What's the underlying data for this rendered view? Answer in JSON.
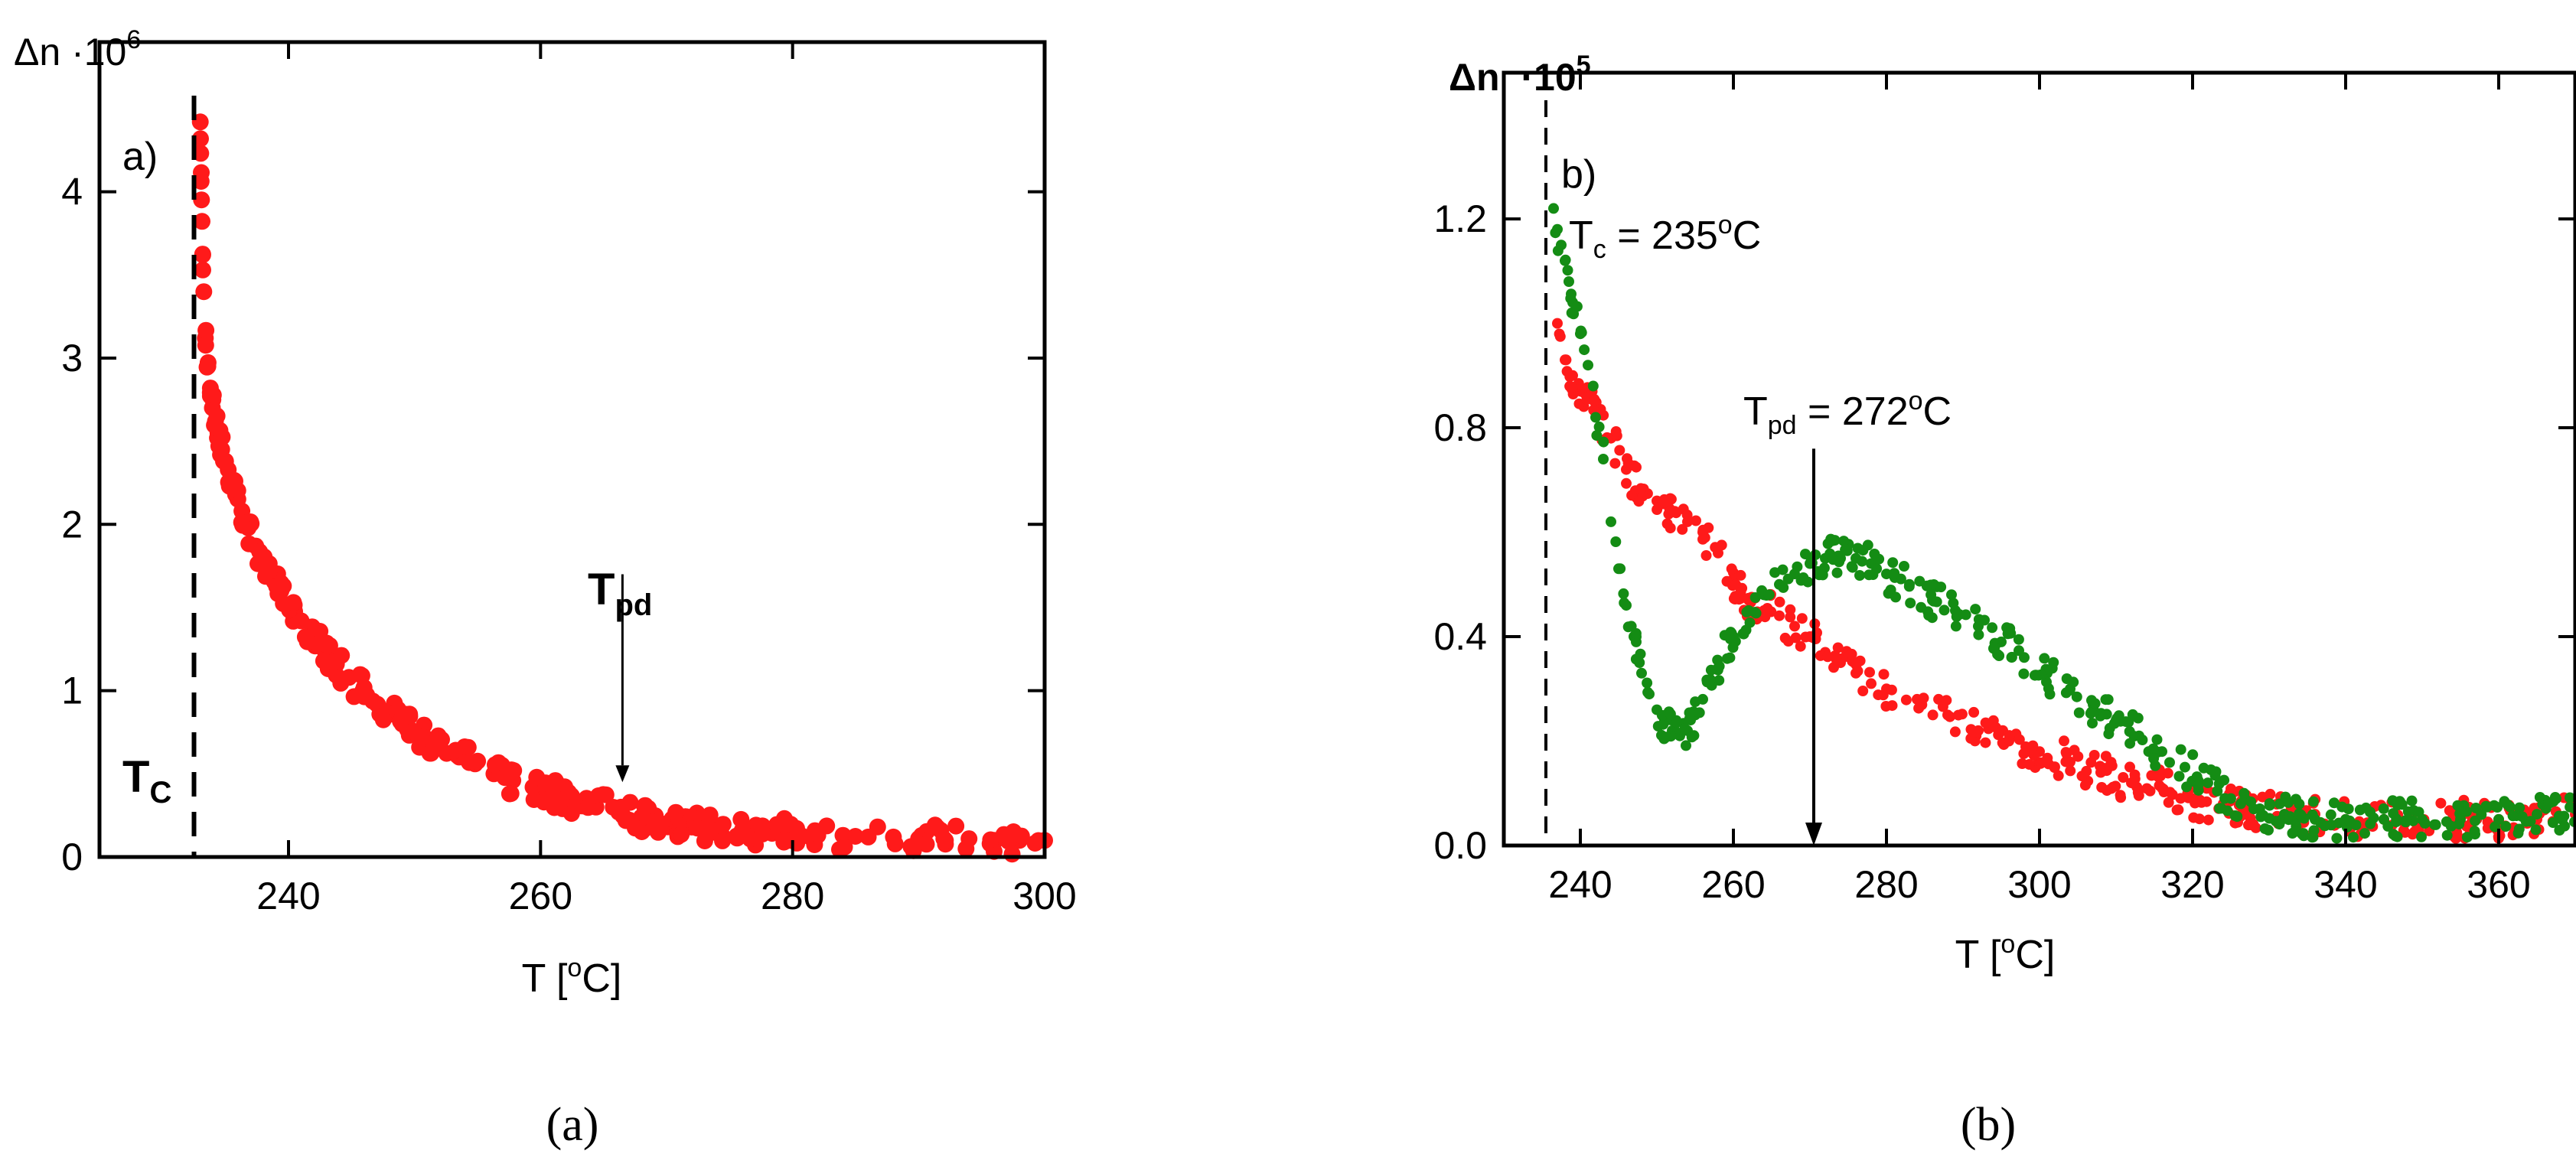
{
  "chart_data": [
    {
      "type": "scatter",
      "panel_label": "a)",
      "caption": "(a)",
      "ylabel_main": "Δn ·10",
      "ylabel_exp": "6",
      "xlabel_main": "T [",
      "xlabel_sup": "o",
      "xlabel_end": "C]",
      "xlim": [
        225,
        300
      ],
      "ylim": [
        0,
        4.9
      ],
      "xticks": [
        240,
        260,
        280,
        300
      ],
      "yticks": [
        0,
        1,
        2,
        3,
        4
      ],
      "color": "#ff1a1a",
      "tc_x": 232.5,
      "tc_label_main": "T",
      "tc_label_sub": "C",
      "tpd_label_main": "T",
      "tpd_label_sub": "pd",
      "arrow": {
        "x": 266.5,
        "y_from": 1.7,
        "y_to": 0.45
      },
      "series": [
        {
          "name": "Δn",
          "x": [
            233.0,
            233.2,
            233.4,
            233.6,
            233.8,
            234.0,
            234.2,
            234.4,
            234.7,
            235.0,
            235.4,
            235.8,
            236.3,
            236.8,
            237.4,
            238.0,
            238.7,
            239.4,
            240.2,
            241.0,
            241.9,
            242.8,
            243.8,
            244.8,
            245.9,
            247.0,
            248.2,
            249.4,
            250.7,
            252.0,
            253.4,
            254.8,
            256.3,
            257.8,
            259.4,
            261.0,
            262.7,
            264.4,
            266.2,
            268.0,
            270.0,
            272.0,
            274.0,
            276.0,
            278.0,
            280.0,
            282.0,
            284.0,
            286.0,
            288.0,
            290.0,
            292.0,
            294.0,
            296.0,
            298.0,
            300.0
          ],
          "y": [
            4.42,
            3.53,
            3.12,
            2.95,
            2.82,
            2.75,
            2.62,
            2.55,
            2.45,
            2.38,
            2.27,
            2.18,
            2.08,
            1.98,
            1.87,
            1.78,
            1.68,
            1.6,
            1.5,
            1.42,
            1.33,
            1.25,
            1.16,
            1.08,
            1.0,
            0.92,
            0.86,
            0.79,
            0.73,
            0.67,
            0.61,
            0.56,
            0.5,
            0.46,
            0.42,
            0.38,
            0.34,
            0.3,
            0.27,
            0.24,
            0.2,
            0.18,
            0.17,
            0.16,
            0.15,
            0.14,
            0.13,
            0.13,
            0.12,
            0.12,
            0.11,
            0.11,
            0.11,
            0.1,
            0.1,
            0.1
          ]
        }
      ]
    },
    {
      "type": "scatter",
      "panel_label": "b)",
      "caption": "(b)",
      "ylabel_main": "Δn",
      "ylabel_dot": "·",
      "ylabel_base": "10",
      "ylabel_exp": "5",
      "xlabel_main": "T [",
      "xlabel_sup": "o",
      "xlabel_end": "C]",
      "xlim": [
        230,
        370
      ],
      "ylim": [
        0,
        1.48
      ],
      "xticks": [
        240,
        260,
        280,
        300,
        320,
        340,
        360
      ],
      "yticks": [
        0.0,
        0.4,
        0.8,
        1.2
      ],
      "ytick_labels": [
        "0.0",
        "0.4",
        "0.8",
        "1.2"
      ],
      "tc_x": 235.5,
      "tc_label_main": "T",
      "tc_label_sub": "c",
      "tc_label_rest1": " = 235",
      "tc_label_sup": "o",
      "tc_label_rest2": "C",
      "tpd_label_main": "T",
      "tpd_label_sub": "pd",
      "tpd_label_rest1": " = 272",
      "tpd_label_sup": "o",
      "tpd_label_rest2": "C",
      "arrow": {
        "x": 270.5,
        "y_from": 0.76,
        "y_to": 0.0
      },
      "series": [
        {
          "name": "red",
          "color": "#ff1a1a",
          "x": [
            237,
            238,
            239,
            240,
            242,
            244,
            246,
            248,
            250,
            252,
            254,
            256,
            258,
            260,
            262,
            264,
            266,
            268,
            270,
            272,
            274,
            276,
            278,
            280,
            284,
            288,
            292,
            296,
            300,
            304,
            308,
            312,
            316,
            320,
            324,
            328,
            332,
            336,
            340,
            345,
            350,
            355,
            360,
            365,
            370
          ],
          "y": [
            1.0,
            0.93,
            0.9,
            0.87,
            0.83,
            0.78,
            0.72,
            0.68,
            0.66,
            0.64,
            0.62,
            0.6,
            0.56,
            0.51,
            0.47,
            0.45,
            0.44,
            0.42,
            0.4,
            0.37,
            0.35,
            0.33,
            0.31,
            0.3,
            0.28,
            0.25,
            0.22,
            0.2,
            0.18,
            0.16,
            0.14,
            0.12,
            0.11,
            0.09,
            0.08,
            0.07,
            0.06,
            0.06,
            0.05,
            0.05,
            0.05,
            0.05,
            0.05,
            0.05,
            0.06
          ]
        },
        {
          "name": "green",
          "color": "#148c14",
          "x": [
            236.5,
            237,
            237.5,
            238,
            238.5,
            239,
            240,
            241,
            242,
            243,
            244,
            245,
            246,
            247,
            248,
            249,
            250,
            251,
            252,
            253,
            254,
            255,
            256,
            258,
            260,
            262,
            264,
            266,
            268,
            270,
            272,
            274,
            276,
            278,
            280,
            283,
            286,
            289,
            292,
            295,
            298,
            301,
            304,
            307,
            310,
            313,
            316,
            319,
            322,
            325,
            328,
            332,
            336,
            340,
            345,
            350,
            355,
            360,
            365,
            370
          ],
          "y": [
            1.22,
            1.18,
            1.15,
            1.12,
            1.08,
            1.04,
            0.98,
            0.92,
            0.82,
            0.74,
            0.62,
            0.53,
            0.46,
            0.4,
            0.33,
            0.29,
            0.26,
            0.24,
            0.22,
            0.21,
            0.22,
            0.25,
            0.28,
            0.34,
            0.4,
            0.45,
            0.48,
            0.5,
            0.52,
            0.54,
            0.55,
            0.55,
            0.55,
            0.54,
            0.52,
            0.5,
            0.47,
            0.45,
            0.42,
            0.39,
            0.36,
            0.33,
            0.3,
            0.27,
            0.24,
            0.21,
            0.18,
            0.15,
            0.12,
            0.09,
            0.07,
            0.06,
            0.05,
            0.05,
            0.05,
            0.05,
            0.05,
            0.05,
            0.06,
            0.07
          ]
        }
      ]
    }
  ]
}
